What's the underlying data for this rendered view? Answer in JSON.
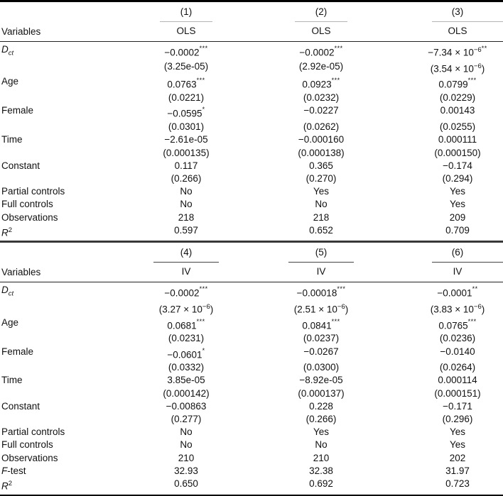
{
  "table": {
    "panels": [
      {
        "id": "ols-panel",
        "header": {
          "variables_label": "Variables",
          "columns": [
            {
              "number": "(1)",
              "method": "OLS"
            },
            {
              "number": "(2)",
              "method": "OLS"
            },
            {
              "number": "(3)",
              "method": "OLS"
            }
          ]
        },
        "coef_rows": [
          {
            "label": {
              "main": "D",
              "italic": true,
              "sub": "ct"
            },
            "cells": [
              {
                "est": "−0.0002",
                "stars": "***",
                "se": "(3.25e-05)"
              },
              {
                "est": "−0.0002",
                "stars": "***",
                "se": "(2.92e-05)"
              },
              {
                "est": "−7.34 × 10",
                "est_sup": "−6",
                "stars": "**",
                "se": "(3.54 × 10",
                "se_sup": "−6",
                "se_end": ")"
              }
            ]
          },
          {
            "label": {
              "main": "Age"
            },
            "cells": [
              {
                "est": "0.0763",
                "stars": "***",
                "se": "(0.0221)"
              },
              {
                "est": "0.0923",
                "stars": "***",
                "se": "(0.0232)"
              },
              {
                "est": "0.0799",
                "stars": "***",
                "se": "(0.0229)"
              }
            ]
          },
          {
            "label": {
              "main": "Female"
            },
            "cells": [
              {
                "est": "−0.0595",
                "stars": "*",
                "se": "(0.0301)"
              },
              {
                "est": "−0.0227",
                "stars": "",
                "se": "(0.0262)"
              },
              {
                "est": "0.00143",
                "stars": "",
                "se": "(0.0255)"
              }
            ]
          },
          {
            "label": {
              "main": "Time"
            },
            "cells": [
              {
                "est": "−2.61e-05",
                "stars": "",
                "se": "(0.000135)"
              },
              {
                "est": "−0.000160",
                "stars": "",
                "se": "(0.000138)"
              },
              {
                "est": "0.000111",
                "stars": "",
                "se": "(0.000150)"
              }
            ]
          },
          {
            "label": {
              "main": "Constant"
            },
            "cells": [
              {
                "est": "0.117",
                "stars": "",
                "se": "(0.266)"
              },
              {
                "est": "0.365",
                "stars": "",
                "se": "(0.270)"
              },
              {
                "est": "−0.174",
                "stars": "",
                "se": "(0.294)"
              }
            ]
          }
        ],
        "stat_rows": [
          {
            "label": {
              "main": "Partial controls"
            },
            "values": [
              "No",
              "Yes",
              "Yes"
            ]
          },
          {
            "label": {
              "main": "Full controls"
            },
            "values": [
              "No",
              "No",
              "Yes"
            ]
          },
          {
            "label": {
              "main": "Observations"
            },
            "values": [
              "218",
              "218",
              "209"
            ]
          },
          {
            "label": {
              "main": "R",
              "italic": true,
              "sup": "2"
            },
            "values": [
              "0.597",
              "0.652",
              "0.709"
            ]
          }
        ]
      },
      {
        "id": "iv-panel",
        "header": {
          "variables_label": "Variables",
          "columns": [
            {
              "number": "(4)",
              "method": "IV"
            },
            {
              "number": "(5)",
              "method": "IV"
            },
            {
              "number": "(6)",
              "method": "IV"
            }
          ]
        },
        "coef_rows": [
          {
            "label": {
              "main": "D",
              "italic": true,
              "sub": "ct"
            },
            "cells": [
              {
                "est": "−0.0002",
                "stars": "***",
                "se": "(3.27 × 10",
                "se_sup": "−6",
                "se_end": ")"
              },
              {
                "est": "−0.00018",
                "stars": "***",
                "se": "(2.51 × 10",
                "se_sup": "−6",
                "se_end": ")"
              },
              {
                "est": "−0.0001",
                "stars": "**",
                "se": "(3.83 × 10",
                "se_sup": "−6",
                "se_end": ")"
              }
            ]
          },
          {
            "label": {
              "main": "Age"
            },
            "cells": [
              {
                "est": "0.0681",
                "stars": "***",
                "se": "(0.0231)"
              },
              {
                "est": "0.0841",
                "stars": "***",
                "se": "(0.0237)"
              },
              {
                "est": "0.0765",
                "stars": "***",
                "se": "(0.0236)"
              }
            ]
          },
          {
            "label": {
              "main": "Female"
            },
            "cells": [
              {
                "est": "−0.0601",
                "stars": "*",
                "se": "(0.0332)"
              },
              {
                "est": "−0.0267",
                "stars": "",
                "se": "(0.0300)"
              },
              {
                "est": "−0.0140",
                "stars": "",
                "se": "(0.0264)"
              }
            ]
          },
          {
            "label": {
              "main": "Time"
            },
            "cells": [
              {
                "est": "3.85e-05",
                "stars": "",
                "se": "(0.000142)"
              },
              {
                "est": "−8.92e-05",
                "stars": "",
                "se": "(0.000137)"
              },
              {
                "est": "0.000114",
                "stars": "",
                "se": "(0.000151)"
              }
            ]
          },
          {
            "label": {
              "main": "Constant"
            },
            "cells": [
              {
                "est": "−0.00863",
                "stars": "",
                "se": "(0.277)"
              },
              {
                "est": "0.228",
                "stars": "",
                "se": "(0.266)"
              },
              {
                "est": "−0.171",
                "stars": "",
                "se": "(0.296)"
              }
            ]
          }
        ],
        "stat_rows": [
          {
            "label": {
              "main": "Partial controls"
            },
            "values": [
              "No",
              "Yes",
              "Yes"
            ]
          },
          {
            "label": {
              "main": "Full controls"
            },
            "values": [
              "No",
              "No",
              "Yes"
            ]
          },
          {
            "label": {
              "main": "Observations"
            },
            "values": [
              "210",
              "210",
              "202"
            ]
          },
          {
            "label": {
              "main": "F",
              "italic": true,
              "tail": "-test"
            },
            "values": [
              "32.93",
              "32.38",
              "31.97"
            ]
          },
          {
            "label": {
              "main": "R",
              "italic": true,
              "sup": "2"
            },
            "values": [
              "0.650",
              "0.692",
              "0.723"
            ]
          }
        ]
      }
    ]
  }
}
